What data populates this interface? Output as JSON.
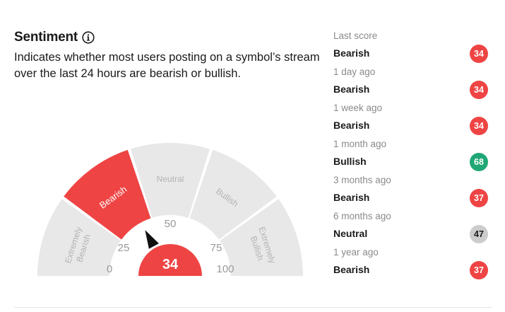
{
  "header": {
    "title": "Sentiment",
    "description": "Indicates whether most users posting on a symbol’s stream over the last 24 hours are bearish or bullish."
  },
  "gauge": {
    "score": 34,
    "segments": [
      {
        "line1": "Extremely",
        "line2": "Bearish"
      },
      {
        "line1": "Bearish"
      },
      {
        "line1": "Neutral"
      },
      {
        "line1": "Bullish"
      },
      {
        "line1": "Extremely",
        "line2": "Bullish"
      }
    ],
    "active_segment": 1,
    "ticks": [
      "0",
      "25",
      "50",
      "75",
      "100"
    ]
  },
  "history": [
    {
      "label": "Last score",
      "sentiment": "Bearish",
      "score": "34",
      "color": "#ef4444"
    },
    {
      "label": "1 day ago",
      "sentiment": "Bearish",
      "score": "34",
      "color": "#ef4444"
    },
    {
      "label": "1 week ago",
      "sentiment": "Bearish",
      "score": "34",
      "color": "#ef4444"
    },
    {
      "label": "1 month ago",
      "sentiment": "Bullish",
      "score": "68",
      "color": "#1fa775"
    },
    {
      "label": "3 months ago",
      "sentiment": "Bearish",
      "score": "37",
      "color": "#ef4444"
    },
    {
      "label": "6 months ago",
      "sentiment": "Neutral",
      "score": "47",
      "color": "#cccccc"
    },
    {
      "label": "1 year ago",
      "sentiment": "Bearish",
      "score": "37",
      "color": "#ef4444"
    }
  ],
  "colors": {
    "bearish": "#ef4444",
    "bullish": "#1fa775",
    "neutral": "#cccccc",
    "inactive_segment": "#e8e8e8"
  }
}
